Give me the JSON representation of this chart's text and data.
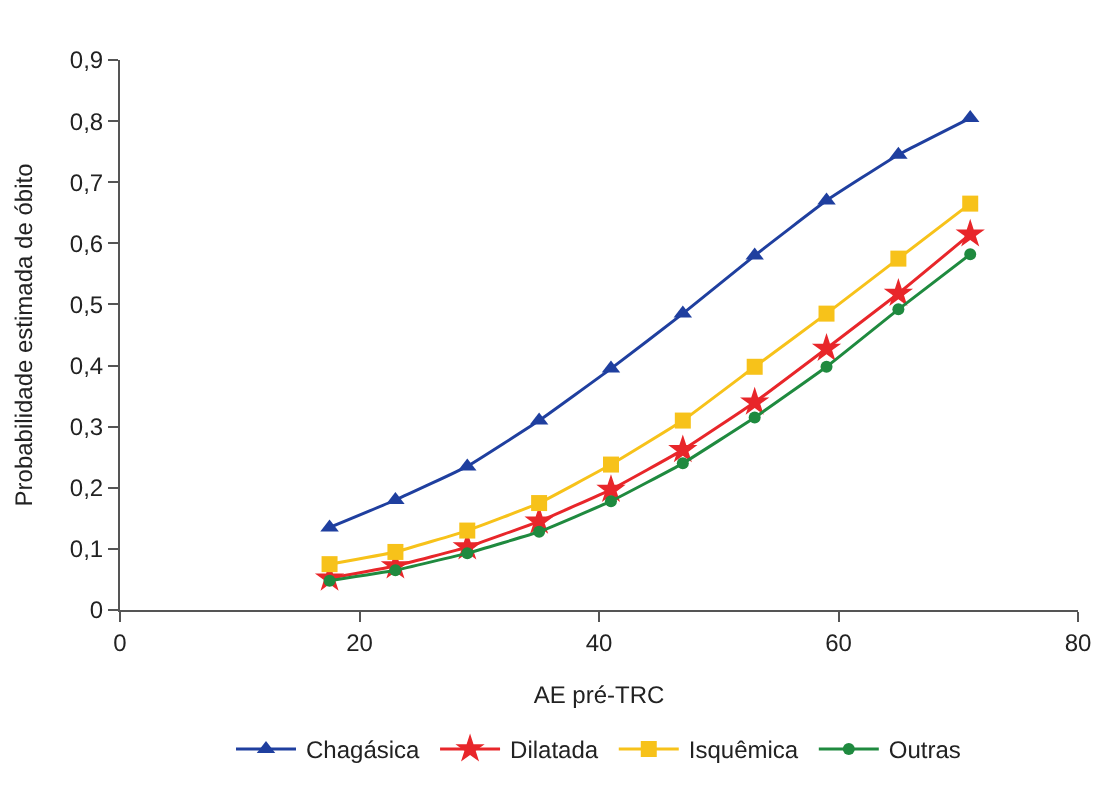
{
  "chart_data": {
    "type": "line",
    "xlabel": "AE pré-TRC",
    "ylabel": "Probabilidade estimada de óbito",
    "x": [
      17.5,
      23,
      29,
      35,
      41,
      47,
      53,
      59,
      65,
      71
    ],
    "series": [
      {
        "name": "Chagásica",
        "color": "#1f3f9f",
        "marker": "triangle",
        "values": [
          0.135,
          0.18,
          0.235,
          0.31,
          0.395,
          0.485,
          0.58,
          0.67,
          0.745,
          0.805
        ]
      },
      {
        "name": "Dilatada",
        "color": "#e8262a",
        "marker": "star",
        "values": [
          0.052,
          0.072,
          0.103,
          0.145,
          0.197,
          0.262,
          0.34,
          0.428,
          0.518,
          0.615
        ]
      },
      {
        "name": "Isquêmica",
        "color": "#f7c21a",
        "marker": "square",
        "values": [
          0.075,
          0.095,
          0.13,
          0.175,
          0.238,
          0.31,
          0.398,
          0.485,
          0.575,
          0.665
        ]
      },
      {
        "name": "Outras",
        "color": "#1f8a3f",
        "marker": "circle",
        "values": [
          0.048,
          0.065,
          0.093,
          0.128,
          0.178,
          0.24,
          0.315,
          0.398,
          0.492,
          0.582
        ]
      }
    ],
    "xlim": [
      0,
      80
    ],
    "xticks": [
      0,
      20,
      40,
      60,
      80
    ],
    "ylim": [
      0,
      0.9
    ],
    "yticks": [
      0,
      {
        "value": 0.1,
        "label": "0,1"
      },
      {
        "value": 0.2,
        "label": "0,2"
      },
      {
        "value": 0.3,
        "label": "0,3"
      },
      {
        "value": 0.4,
        "label": "0,4"
      },
      {
        "value": 0.5,
        "label": "0,5"
      },
      {
        "value": 0.6,
        "label": "0,6"
      },
      {
        "value": 0.7,
        "label": "0,7"
      },
      {
        "value": 0.8,
        "label": "0,8"
      },
      {
        "value": 0.9,
        "label": "0,9"
      }
    ],
    "legend": "bottom",
    "line_style": "solid"
  }
}
